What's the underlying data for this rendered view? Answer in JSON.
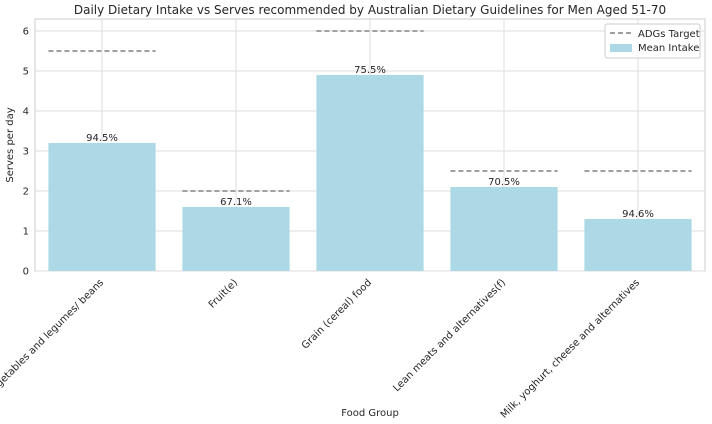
{
  "chart_data": {
    "type": "bar",
    "title": "Daily Dietary Intake vs Serves recommended by Australian Dietary Guidelines for Men Aged 51-70",
    "xlabel": "Food Group",
    "ylabel": "Serves per day",
    "ylim": [
      0,
      6.3
    ],
    "yticks": [
      0,
      1,
      2,
      3,
      4,
      5,
      6
    ],
    "grid": true,
    "legend_position": "top-right",
    "categories": [
      "Vegetables and legumes/ beans",
      "Fruit(e)",
      "Grain (cereal) food",
      "Lean meats and alternatives(f)",
      "Milk, yoghurt, cheese and alternatives"
    ],
    "series": [
      {
        "name": "Mean Intake",
        "kind": "bar",
        "color": "#add8e6",
        "values": [
          3.2,
          1.6,
          4.9,
          2.1,
          1.3
        ],
        "data_labels": [
          "94.5%",
          "67.1%",
          "75.5%",
          "70.5%",
          "94.6%"
        ]
      },
      {
        "name": "ADGs Target",
        "kind": "dashed-line",
        "color": "#808080",
        "values": [
          5.5,
          2.0,
          6.0,
          2.5,
          2.5
        ]
      }
    ]
  }
}
